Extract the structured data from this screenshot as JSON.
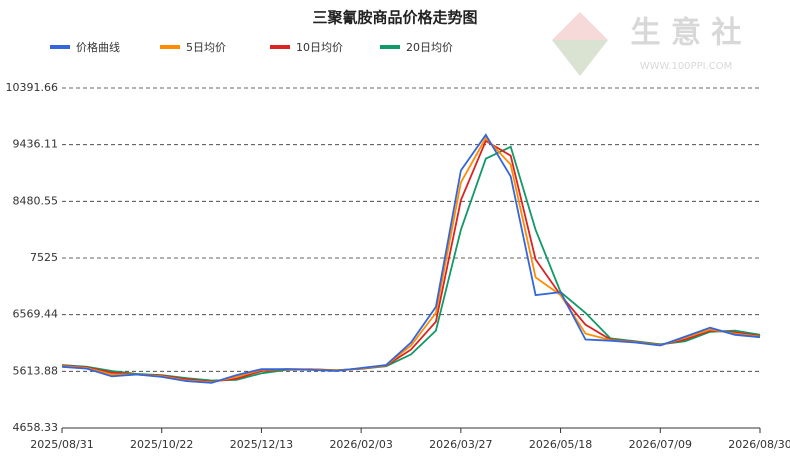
{
  "chart_data": {
    "type": "line",
    "title": "三聚氰胺商品价格走势图",
    "brand": "生 意 社",
    "brand_url": "WWW.100PPI.COM",
    "x": [
      "2025/08/31",
      "2025/09/13",
      "2025/09/26",
      "2025/10/09",
      "2025/10/22",
      "2025/11/04",
      "2025/11/17",
      "2025/11/30",
      "2025/12/13",
      "2025/12/26",
      "2026/01/08",
      "2026/01/21",
      "2026/02/03",
      "2026/02/16",
      "2026/03/01",
      "2026/03/14",
      "2026/03/27",
      "2026/04/09",
      "2026/04/22",
      "2026/05/05",
      "2026/05/18",
      "2026/05/31",
      "2026/06/13",
      "2026/06/26",
      "2026/07/09",
      "2026/07/22",
      "2026/08/04",
      "2026/08/17",
      "2026/08/30"
    ],
    "xtick_indices": [
      0,
      4,
      8,
      12,
      16,
      20,
      24,
      28
    ],
    "ylim": [
      4658.33,
      10391.66
    ],
    "yticks": [
      4658.33,
      5613.88,
      6569.44,
      7525,
      8480.55,
      9436.11,
      10391.66
    ],
    "grid": true,
    "series": [
      {
        "name": "价格曲线",
        "color": "#3366dd",
        "values": [
          5690,
          5660,
          5530,
          5560,
          5520,
          5450,
          5420,
          5550,
          5650,
          5650,
          5640,
          5620,
          5670,
          5720,
          6100,
          6700,
          9000,
          9600,
          8900,
          6900,
          6950,
          6150,
          6130,
          6100,
          6050,
          6200,
          6350,
          6230,
          6190
        ]
      },
      {
        "name": "5日均价",
        "color": "#ff8c00",
        "values": [
          5700,
          5670,
          5560,
          5560,
          5530,
          5460,
          5430,
          5520,
          5640,
          5650,
          5645,
          5625,
          5665,
          5715,
          6050,
          6600,
          8800,
          9550,
          9100,
          7200,
          6900,
          6250,
          6140,
          6105,
          6055,
          6180,
          6320,
          6250,
          6200
        ]
      },
      {
        "name": "10日均价",
        "color": "#dd2222",
        "values": [
          5710,
          5680,
          5590,
          5560,
          5540,
          5480,
          5440,
          5490,
          5620,
          5650,
          5648,
          5630,
          5660,
          5710,
          5980,
          6450,
          8500,
          9500,
          9250,
          7500,
          6900,
          6400,
          6150,
          6110,
          6060,
          6150,
          6300,
          6270,
          6210
        ]
      },
      {
        "name": "20日均价",
        "color": "#119966",
        "values": [
          5720,
          5690,
          5620,
          5570,
          5550,
          5500,
          5460,
          5470,
          5580,
          5640,
          5648,
          5635,
          5655,
          5700,
          5900,
          6300,
          8000,
          9200,
          9400,
          8000,
          6950,
          6600,
          6170,
          6120,
          6070,
          6120,
          6280,
          6300,
          6230
        ]
      }
    ]
  }
}
